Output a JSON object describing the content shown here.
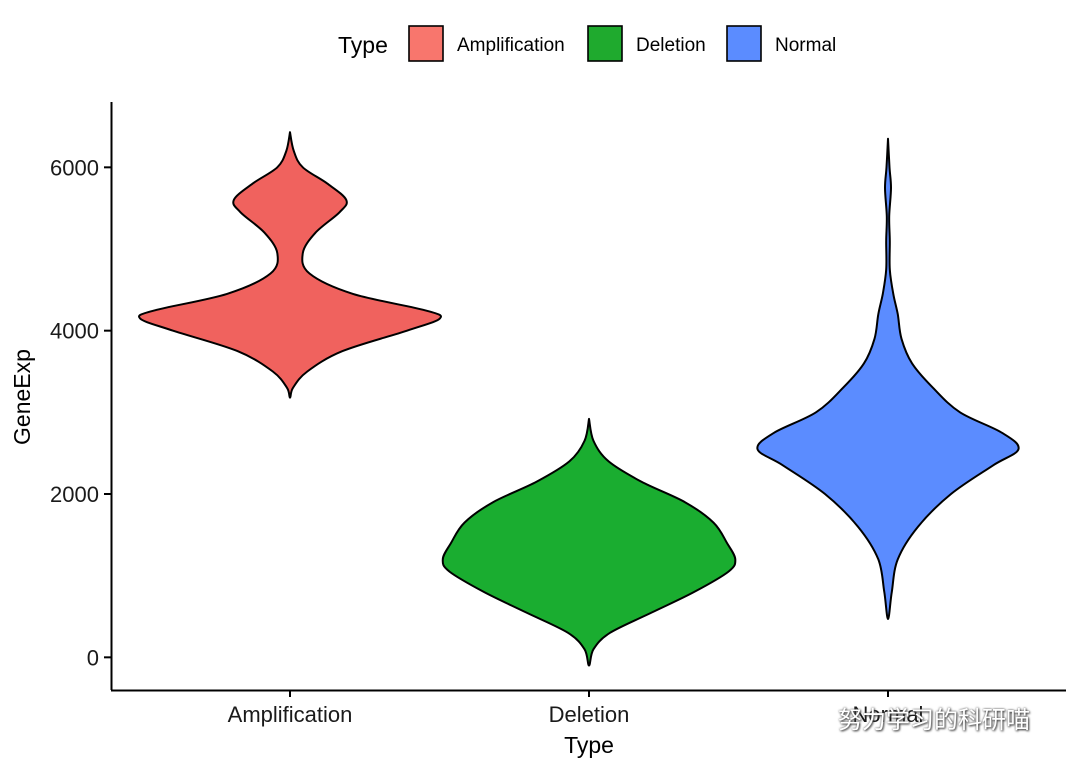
{
  "chart_data": {
    "type": "violin",
    "xlabel": "Type",
    "ylabel": "GeneExp",
    "ylim": [
      -400,
      6800
    ],
    "yticks": [
      0,
      2000,
      4000,
      6000
    ],
    "categories": [
      "Amplification",
      "Deletion",
      "Normal"
    ],
    "legend": {
      "title": "Type",
      "placement": "top",
      "entries": [
        {
          "label": "Amplification",
          "color": "#F8766D"
        },
        {
          "label": "Deletion",
          "color": "#1FAA2E"
        },
        {
          "label": "Normal",
          "color": "#5B8CFF"
        }
      ]
    },
    "series": [
      {
        "name": "Amplification",
        "color": "#F0625E",
        "density": [
          {
            "y": 3180,
            "w": 0.0
          },
          {
            "y": 3300,
            "w": 0.02
          },
          {
            "y": 3500,
            "w": 0.115
          },
          {
            "y": 3750,
            "w": 0.35
          },
          {
            "y": 4000,
            "w": 0.78
          },
          {
            "y": 4150,
            "w": 1.0
          },
          {
            "y": 4250,
            "w": 0.9
          },
          {
            "y": 4450,
            "w": 0.42
          },
          {
            "y": 4700,
            "w": 0.13
          },
          {
            "y": 4950,
            "w": 0.085
          },
          {
            "y": 5200,
            "w": 0.17
          },
          {
            "y": 5450,
            "w": 0.33
          },
          {
            "y": 5600,
            "w": 0.375
          },
          {
            "y": 5800,
            "w": 0.25
          },
          {
            "y": 6000,
            "w": 0.085
          },
          {
            "y": 6200,
            "w": 0.025
          },
          {
            "y": 6430,
            "w": 0.0
          }
        ]
      },
      {
        "name": "Deletion",
        "color": "#1AAD30",
        "density": [
          {
            "y": -100,
            "w": 0.0
          },
          {
            "y": 100,
            "w": 0.03
          },
          {
            "y": 300,
            "w": 0.14
          },
          {
            "y": 550,
            "w": 0.42
          },
          {
            "y": 800,
            "w": 0.7
          },
          {
            "y": 1050,
            "w": 0.93
          },
          {
            "y": 1200,
            "w": 0.975
          },
          {
            "y": 1400,
            "w": 0.92
          },
          {
            "y": 1650,
            "w": 0.83
          },
          {
            "y": 1900,
            "w": 0.64
          },
          {
            "y": 2150,
            "w": 0.35
          },
          {
            "y": 2400,
            "w": 0.13
          },
          {
            "y": 2650,
            "w": 0.03
          },
          {
            "y": 2920,
            "w": 0.0
          }
        ]
      },
      {
        "name": "Normal",
        "color": "#5B8CFF",
        "density": [
          {
            "y": 470,
            "w": 0.0
          },
          {
            "y": 800,
            "w": 0.025
          },
          {
            "y": 1200,
            "w": 0.065
          },
          {
            "y": 1600,
            "w": 0.2
          },
          {
            "y": 2000,
            "w": 0.42
          },
          {
            "y": 2350,
            "w": 0.7
          },
          {
            "y": 2550,
            "w": 0.87
          },
          {
            "y": 2750,
            "w": 0.76
          },
          {
            "y": 3000,
            "w": 0.48
          },
          {
            "y": 3300,
            "w": 0.3
          },
          {
            "y": 3600,
            "w": 0.16
          },
          {
            "y": 3900,
            "w": 0.09
          },
          {
            "y": 4200,
            "w": 0.065
          },
          {
            "y": 4450,
            "w": 0.035
          },
          {
            "y": 4750,
            "w": 0.012
          },
          {
            "y": 5100,
            "w": 0.012
          },
          {
            "y": 5400,
            "w": 0.008
          },
          {
            "y": 5750,
            "w": 0.02
          },
          {
            "y": 6000,
            "w": 0.01
          },
          {
            "y": 6350,
            "w": 0.0
          }
        ]
      }
    ]
  },
  "watermark": {
    "text": "努力学习的科研喵"
  }
}
